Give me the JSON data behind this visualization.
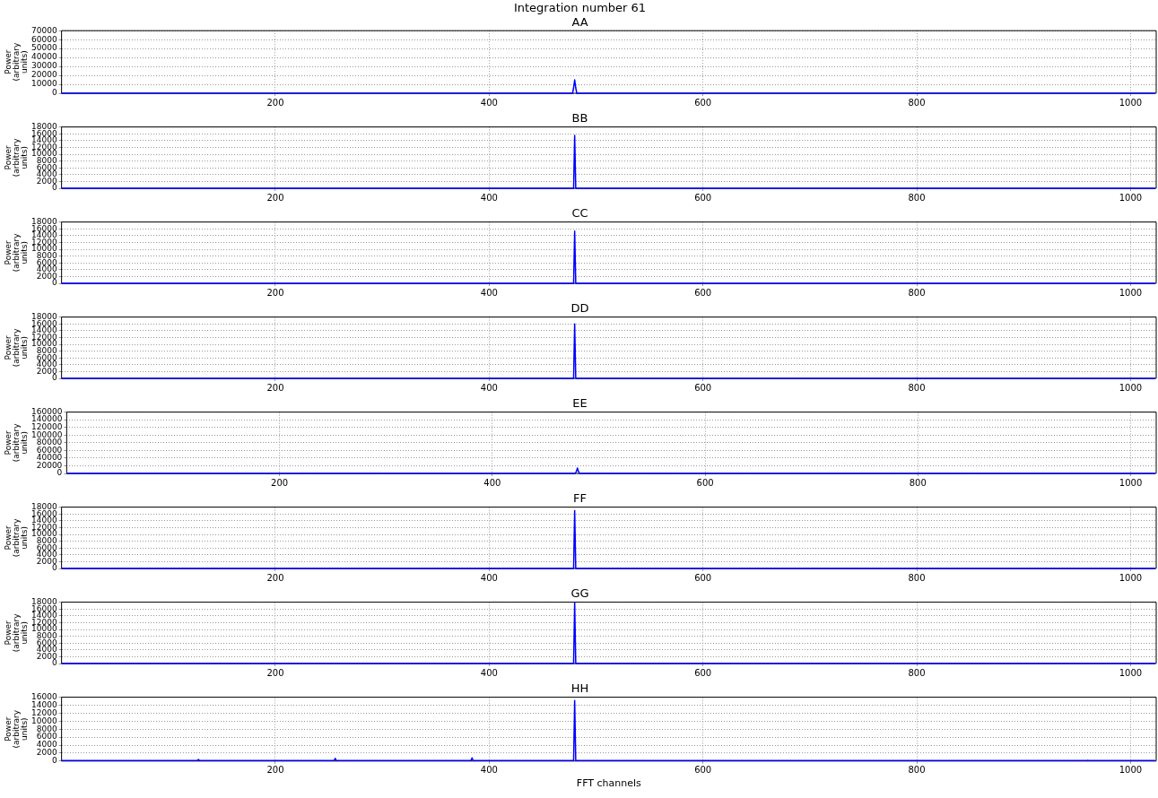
{
  "chart_data": [
    {
      "type": "line",
      "title": "Integration number 61",
      "subtitle": "AA",
      "ylabel": "Power (arbitrary units)",
      "x": [
        0,
        478,
        479,
        480,
        481,
        482,
        1023
      ],
      "values": [
        0,
        0,
        6000,
        15000,
        6000,
        0,
        0
      ],
      "color": "#0000ff",
      "xlim": [
        0,
        1024
      ],
      "ylim": [
        0,
        70000
      ],
      "xticks": [
        200,
        400,
        600,
        800,
        1000
      ],
      "yticks": [
        0,
        10000,
        20000,
        30000,
        40000,
        50000,
        60000,
        70000
      ],
      "grid": true
    },
    {
      "type": "line",
      "title": "BB",
      "ylabel": "Power (arbitrary units)",
      "x": [
        0,
        479,
        480,
        481,
        1023
      ],
      "values": [
        0,
        0,
        15500,
        0,
        0
      ],
      "color": "#0000ff",
      "xlim": [
        0,
        1024
      ],
      "ylim": [
        0,
        18000
      ],
      "xticks": [
        200,
        400,
        600,
        800,
        1000
      ],
      "yticks": [
        0,
        2000,
        4000,
        6000,
        8000,
        10000,
        12000,
        14000,
        16000,
        18000
      ],
      "grid": true
    },
    {
      "type": "line",
      "title": "CC",
      "ylabel": "Power (arbitrary units)",
      "x": [
        0,
        479,
        480,
        481,
        1023
      ],
      "values": [
        0,
        0,
        15300,
        0,
        0
      ],
      "color": "#0000ff",
      "xlim": [
        0,
        1024
      ],
      "ylim": [
        0,
        18000
      ],
      "xticks": [
        200,
        400,
        600,
        800,
        1000
      ],
      "yticks": [
        0,
        2000,
        4000,
        6000,
        8000,
        10000,
        12000,
        14000,
        16000,
        18000
      ],
      "grid": true
    },
    {
      "type": "line",
      "title": "DD",
      "ylabel": "Power (arbitrary units)",
      "x": [
        0,
        479,
        480,
        481,
        1023
      ],
      "values": [
        0,
        0,
        16000,
        0,
        0
      ],
      "color": "#0000ff",
      "xlim": [
        0,
        1024
      ],
      "ylim": [
        0,
        18000
      ],
      "xticks": [
        200,
        400,
        600,
        800,
        1000
      ],
      "yticks": [
        0,
        2000,
        4000,
        6000,
        8000,
        10000,
        12000,
        14000,
        16000,
        18000
      ],
      "grid": true
    },
    {
      "type": "line",
      "title": "EE",
      "ylabel": "Power (arbitrary units)",
      "x": [
        0,
        478,
        479,
        480,
        481,
        482,
        1023
      ],
      "values": [
        0,
        0,
        5000,
        14000,
        5000,
        0,
        0
      ],
      "color": "#0000ff",
      "xlim": [
        0,
        1024
      ],
      "ylim": [
        0,
        160000
      ],
      "xticks": [
        200,
        400,
        600,
        800,
        1000
      ],
      "yticks": [
        0,
        20000,
        40000,
        60000,
        80000,
        100000,
        120000,
        140000,
        160000
      ],
      "grid": true
    },
    {
      "type": "line",
      "title": "FF",
      "ylabel": "Power (arbitrary units)",
      "x": [
        0,
        479,
        480,
        481,
        1023
      ],
      "values": [
        0,
        0,
        17000,
        0,
        0
      ],
      "color": "#0000ff",
      "xlim": [
        0,
        1024
      ],
      "ylim": [
        0,
        18000
      ],
      "xticks": [
        200,
        400,
        600,
        800,
        1000
      ],
      "yticks": [
        0,
        2000,
        4000,
        6000,
        8000,
        10000,
        12000,
        14000,
        16000,
        18000
      ],
      "grid": true
    },
    {
      "type": "line",
      "title": "GG",
      "ylabel": "Power (arbitrary units)",
      "x": [
        0,
        479,
        480,
        481,
        1023
      ],
      "values": [
        0,
        0,
        17800,
        0,
        0
      ],
      "color": "#0000ff",
      "xlim": [
        0,
        1024
      ],
      "ylim": [
        0,
        18000
      ],
      "xticks": [
        200,
        400,
        600,
        800,
        1000
      ],
      "yticks": [
        0,
        2000,
        4000,
        6000,
        8000,
        10000,
        12000,
        14000,
        16000,
        18000
      ],
      "grid": true
    },
    {
      "type": "line",
      "title": "HH",
      "xlabel": "FFT channels",
      "ylabel": "Power (arbitrary units)",
      "x": [
        0,
        127,
        128,
        129,
        255,
        256,
        257,
        383,
        384,
        385,
        479,
        480,
        481,
        959,
        960,
        961,
        1023
      ],
      "values": [
        100,
        100,
        400,
        100,
        100,
        700,
        100,
        100,
        800,
        100,
        100,
        15200,
        100,
        100,
        200,
        100,
        100
      ],
      "color": "#0000ff",
      "xlim": [
        0,
        1024
      ],
      "ylim": [
        0,
        16000
      ],
      "xticks": [
        200,
        400,
        600,
        800,
        1000
      ],
      "yticks": [
        0,
        2000,
        4000,
        6000,
        8000,
        10000,
        12000,
        14000,
        16000
      ],
      "grid": true
    }
  ]
}
